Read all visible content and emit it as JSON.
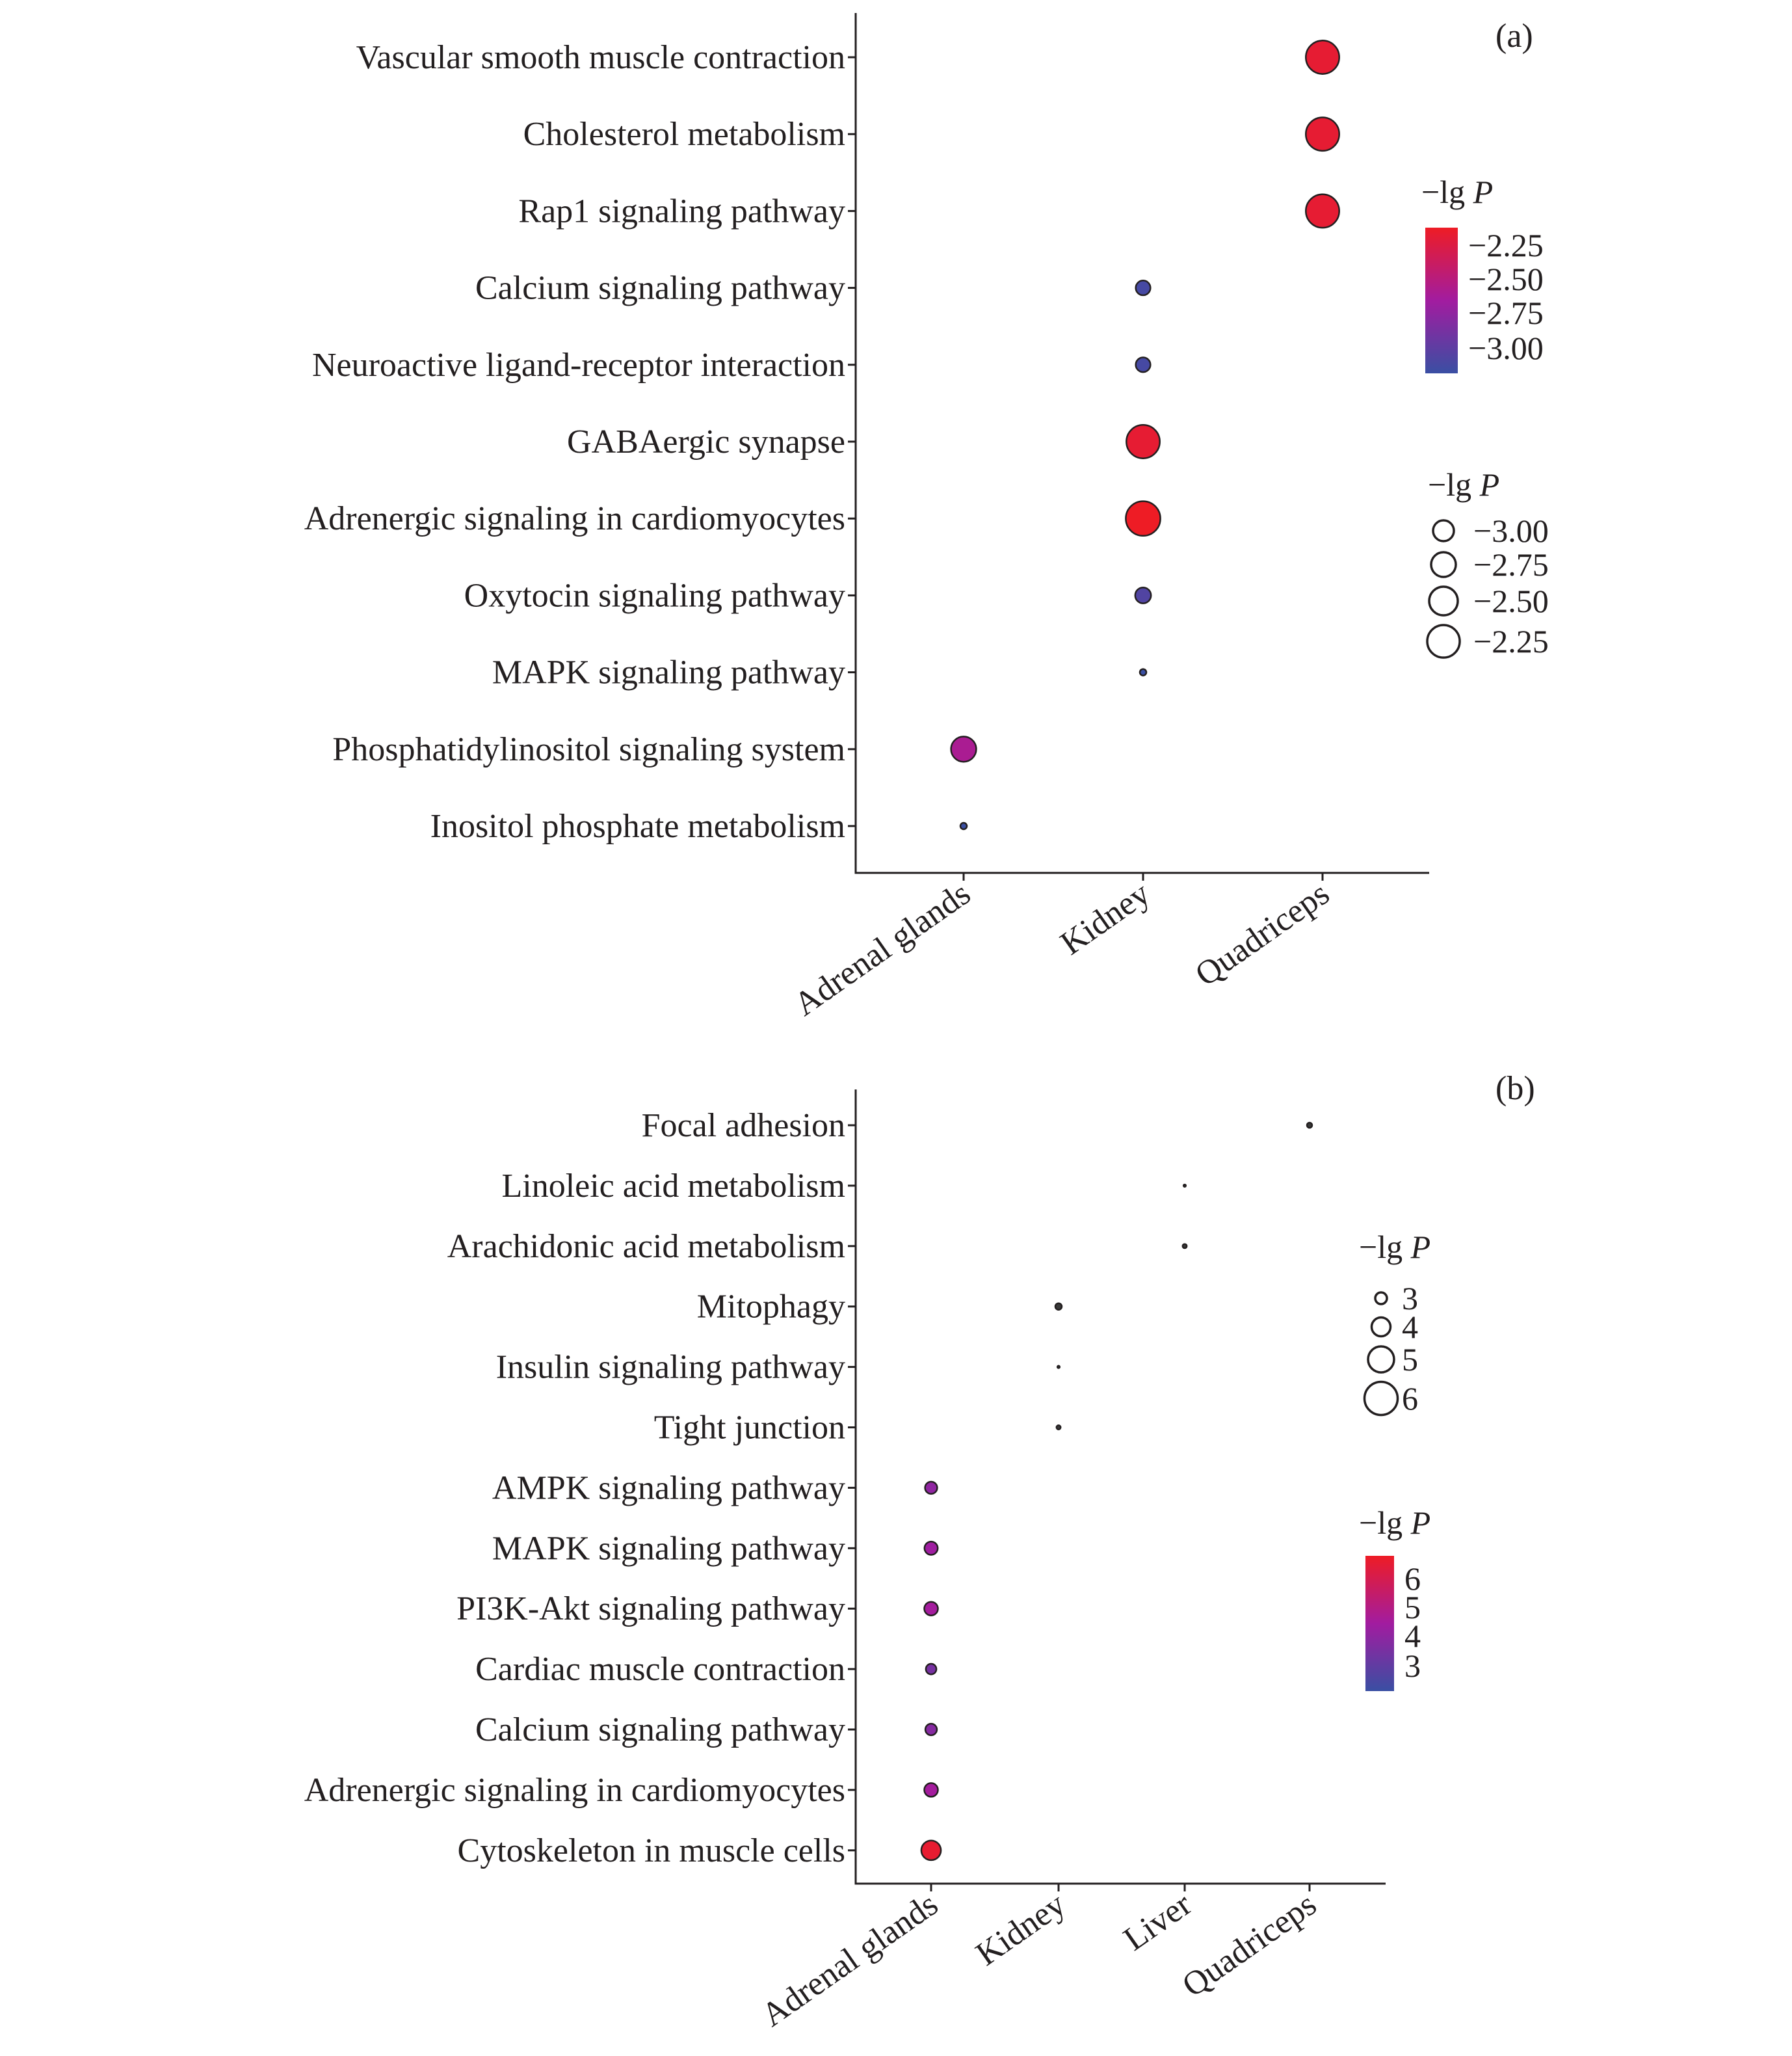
{
  "chart_data": [
    {
      "panel": "(a)",
      "type": "scatter",
      "x_categories": [
        "Adrenal glands",
        "Kidney",
        "Quadriceps"
      ],
      "y_categories": [
        "Vascular smooth muscle contraction",
        "Cholesterol metabolism",
        "Rap1 signaling pathway",
        "Calcium signaling pathway",
        "Neuroactive ligand-receptor interaction",
        "GABAergic synapse",
        "Adrenergic signaling in cardiomyocytes",
        "Oxytocin signaling pathway",
        "MAPK signaling pathway",
        "Phosphatidylinositol signaling system",
        "Inositol phosphate metabolism"
      ],
      "points": [
        {
          "x": "Quadriceps",
          "y": "Vascular smooth muscle contraction",
          "value": -2.2
        },
        {
          "x": "Quadriceps",
          "y": "Cholesterol metabolism",
          "value": -2.2
        },
        {
          "x": "Quadriceps",
          "y": "Rap1 signaling pathway",
          "value": -2.2
        },
        {
          "x": "Kidney",
          "y": "Calcium signaling pathway",
          "value": -3.0
        },
        {
          "x": "Kidney",
          "y": "Neuroactive ligand-receptor interaction",
          "value": -3.0
        },
        {
          "x": "Kidney",
          "y": "GABAergic synapse",
          "value": -2.2
        },
        {
          "x": "Kidney",
          "y": "Adrenergic signaling in cardiomyocytes",
          "value": -2.15
        },
        {
          "x": "Kidney",
          "y": "Oxytocin signaling pathway",
          "value": -2.95
        },
        {
          "x": "Kidney",
          "y": "MAPK signaling pathway",
          "value": -3.35
        },
        {
          "x": "Adrenal glands",
          "y": "Phosphatidylinositol signaling system",
          "value": -2.55
        },
        {
          "x": "Adrenal glands",
          "y": "Inositol phosphate metabolism",
          "value": -3.35
        }
      ],
      "color_legend": {
        "title_prefix": "−lg ",
        "title_italic": "P",
        "labels": [
          "−2.25",
          "−2.50",
          "−2.75",
          "−3.00"
        ],
        "range": [
          -3.05,
          -2.15
        ]
      },
      "size_legend": {
        "title_prefix": "−lg ",
        "title_italic": "P",
        "labels": [
          "−3.00",
          "−2.75",
          "−2.50",
          "−2.25"
        ],
        "values": [
          -3.0,
          -2.75,
          -2.5,
          -2.25
        ]
      },
      "colors": {
        "low": "#3a4fa3",
        "mid": "#a21ca0",
        "high": "#ee1c25"
      }
    },
    {
      "panel": "(b)",
      "type": "scatter",
      "x_categories": [
        "Adrenal glands",
        "Kidney",
        "Liver",
        "Quadriceps"
      ],
      "y_categories": [
        "Focal adhesion",
        "Linoleic acid metabolism",
        "Arachidonic acid metabolism",
        "Mitophagy",
        "Insulin signaling pathway",
        "Tight junction",
        "AMPK signaling pathway",
        "MAPK signaling pathway",
        "PI3K-Akt signaling pathway",
        "Cardiac muscle contraction",
        "Calcium signaling pathway",
        "Adrenergic signaling in cardiomyocytes",
        "Cytoskeleton in muscle cells"
      ],
      "points": [
        {
          "x": "Quadriceps",
          "y": "Focal adhesion",
          "value": 2.1
        },
        {
          "x": "Liver",
          "y": "Linoleic acid metabolism",
          "value": 1.2
        },
        {
          "x": "Liver",
          "y": "Arachidonic acid metabolism",
          "value": 1.8
        },
        {
          "x": "Kidney",
          "y": "Mitophagy",
          "value": 2.5
        },
        {
          "x": "Kidney",
          "y": "Insulin signaling pathway",
          "value": 1.2
        },
        {
          "x": "Kidney",
          "y": "Tight junction",
          "value": 1.8
        },
        {
          "x": "Adrenal glands",
          "y": "AMPK signaling pathway",
          "value": 4.2
        },
        {
          "x": "Adrenal glands",
          "y": "MAPK signaling pathway",
          "value": 4.5
        },
        {
          "x": "Adrenal glands",
          "y": "PI3K-Akt signaling pathway",
          "value": 4.6
        },
        {
          "x": "Adrenal glands",
          "y": "Cardiac muscle contraction",
          "value": 3.7
        },
        {
          "x": "Adrenal glands",
          "y": "Calcium signaling pathway",
          "value": 4.0
        },
        {
          "x": "Adrenal glands",
          "y": "Adrenergic signaling in cardiomyocytes",
          "value": 4.6
        },
        {
          "x": "Adrenal glands",
          "y": "Cytoskeleton in muscle cells",
          "value": 6.4
        }
      ],
      "size_legend": {
        "title_prefix": "−lg ",
        "title_italic": "P",
        "labels": [
          "3",
          "4",
          "5",
          "6"
        ],
        "values": [
          3,
          4,
          5,
          6
        ]
      },
      "color_legend": {
        "title_prefix": "−lg ",
        "title_italic": "P",
        "labels": [
          "6",
          "5",
          "4",
          "3"
        ],
        "range": [
          2.5,
          6.6
        ]
      },
      "colors": {
        "low": "#3a4fa3",
        "mid": "#a21ca0",
        "high": "#ee1c25",
        "dark": "#3a3a3a"
      }
    }
  ]
}
